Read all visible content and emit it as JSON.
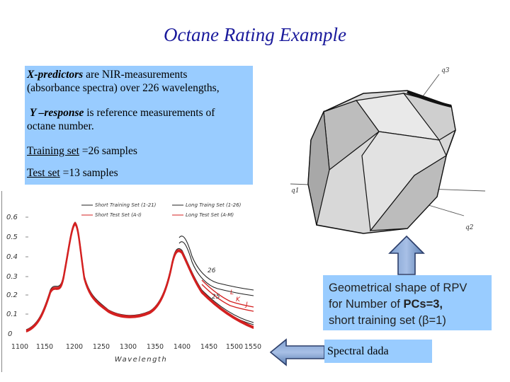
{
  "title": "Octane Rating Example",
  "info": {
    "x_pred_bold": "X-predictors",
    "x_pred_rest": " are NIR-measurements",
    "x_pred_line2": "(absorbance spectra) over 226 wavelengths,",
    "y_resp_bold": "Y –response",
    "y_resp_rest": " is reference measurements of",
    "y_resp_line2": "octane number.",
    "training_label": "Training set",
    "training_value": " =26 samples",
    "test_label": "Test set",
    "test_value": " =13 samples"
  },
  "spectra_plot": {
    "xlabel": "Wavelength",
    "x_ticks": [
      "1100",
      "1150",
      "1200",
      "1250",
      "1300",
      "1350",
      "1400",
      "1450",
      "1500",
      "1550"
    ],
    "y_ticks": [
      "0",
      "0.1",
      "0.2",
      "0.3",
      "0.4",
      "0.5",
      "0.6"
    ],
    "legend": [
      "Short Training Set (1-21)",
      "Long Traing Set (1-26)",
      "Short Test Set (A-I)",
      "Long Test Set (A-M)"
    ],
    "annotations": [
      "26",
      "25",
      "L",
      "K",
      "J"
    ]
  },
  "rpv_figure": {
    "axis_labels": [
      "q3",
      "q1",
      "q2"
    ]
  },
  "caption": {
    "line1": "Geometrical shape of RPV",
    "line2_pre": "for Number of ",
    "line2_bold": "PCs=3,",
    "line3": "short training set (β=1)"
  },
  "spectral_label": "Spectral dada",
  "colors": {
    "title": "#1a1a9c",
    "box_fill": "#99ccff",
    "arrow_fill": "#5b7fb3",
    "curve_red": "#d42020"
  }
}
